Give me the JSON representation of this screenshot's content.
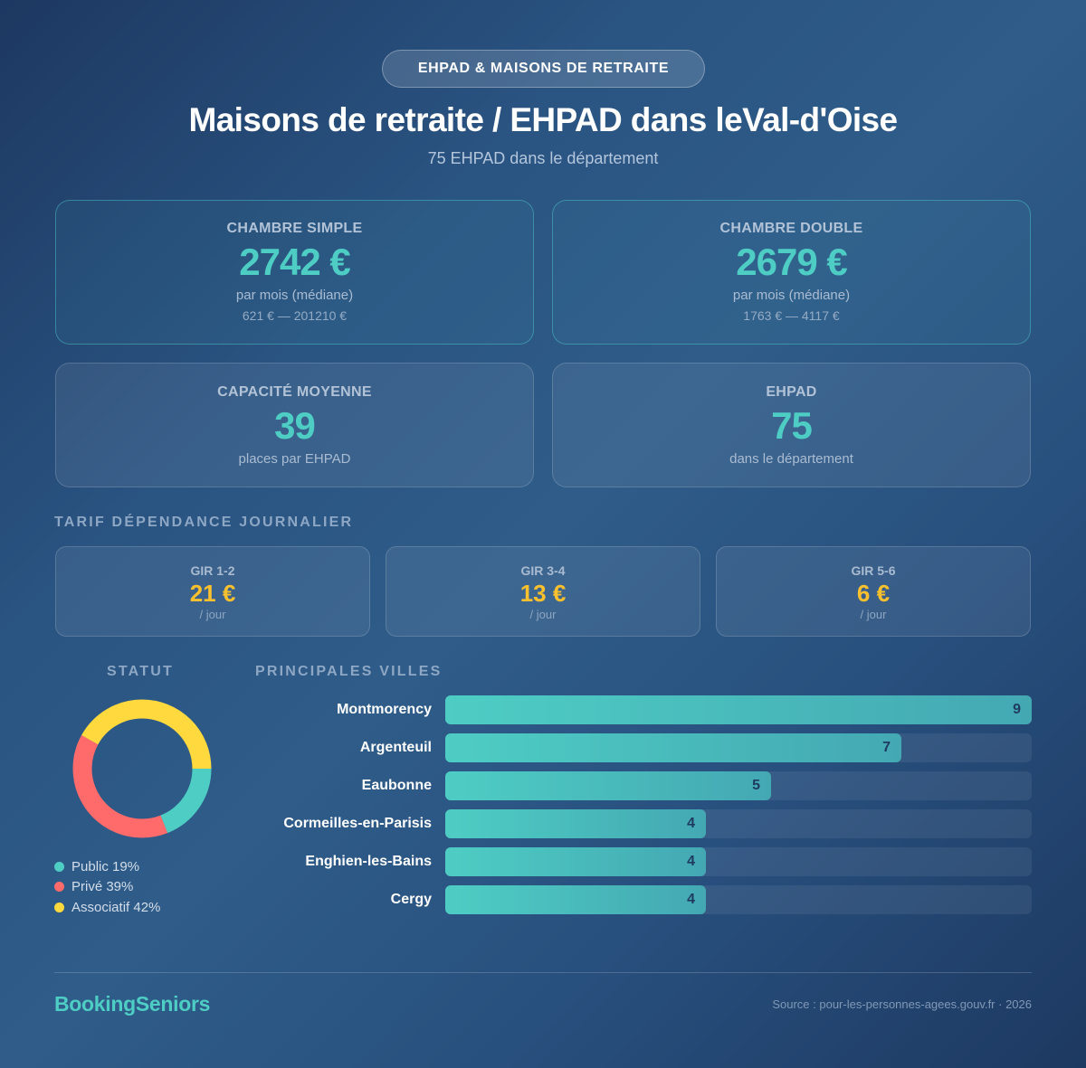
{
  "header": {
    "badge": "EHPAD & MAISONS DE RETRAITE",
    "title": "Maisons de retraite / EHPAD dans leVal-d'Oise",
    "subtitle": "75 EHPAD dans le département"
  },
  "cards": {
    "simple": {
      "label": "CHAMBRE SIMPLE",
      "value": "2742 €",
      "sub": "par mois (médiane)",
      "range": "621 € — 201210 €"
    },
    "double": {
      "label": "CHAMBRE DOUBLE",
      "value": "2679 €",
      "sub": "par mois (médiane)",
      "range": "1763 € — 4117 €"
    },
    "capacity": {
      "label": "CAPACITÉ MOYENNE",
      "value": "39",
      "sub": "places par EHPAD"
    },
    "count": {
      "label": "EHPAD",
      "value": "75",
      "sub": "dans le département"
    }
  },
  "dependance": {
    "title": "TARIF DÉPENDANCE JOURNALIER",
    "items": [
      {
        "label": "GIR 1-2",
        "value": "21 €",
        "unit": "/ jour"
      },
      {
        "label": "GIR 3-4",
        "value": "13 €",
        "unit": "/ jour"
      },
      {
        "label": "GIR 5-6",
        "value": "6 €",
        "unit": "/ jour"
      }
    ]
  },
  "statut": {
    "title": "STATUT",
    "legend": [
      {
        "label": "Public 19%",
        "color": "#4ecdc4"
      },
      {
        "label": "Privé 39%",
        "color": "#ff6b6b"
      },
      {
        "label": "Associatif 42%",
        "color": "#ffd93d"
      }
    ]
  },
  "villes": {
    "title": "PRINCIPALES VILLES",
    "rows": [
      {
        "name": "Montmorency",
        "value": "9"
      },
      {
        "name": "Argenteuil",
        "value": "7"
      },
      {
        "name": "Eaubonne",
        "value": "5"
      },
      {
        "name": "Cormeilles-en-Parisis",
        "value": "4"
      },
      {
        "name": "Enghien-les-Bains",
        "value": "4"
      },
      {
        "name": "Cergy",
        "value": "4"
      }
    ]
  },
  "footer": {
    "brand": "BookingSeniors",
    "source": "Source : pour-les-personnes-agees.gouv.fr · 2026"
  },
  "colors": {
    "accent": "#4ecdc4",
    "gold": "#fbc02d",
    "public": "#4ecdc4",
    "prive": "#ff6b6b",
    "associatif": "#ffd93d"
  },
  "chart_data": [
    {
      "type": "pie",
      "title": "STATUT",
      "categories": [
        "Public",
        "Privé",
        "Associatif"
      ],
      "values": [
        19,
        39,
        42
      ],
      "unit": "%",
      "colors": [
        "#4ecdc4",
        "#ff6b6b",
        "#ffd93d"
      ],
      "donut": true,
      "legend_position": "bottom"
    },
    {
      "type": "bar",
      "orientation": "horizontal",
      "title": "PRINCIPALES VILLES",
      "categories": [
        "Montmorency",
        "Argenteuil",
        "Eaubonne",
        "Cormeilles-en-Parisis",
        "Enghien-les-Bains",
        "Cergy"
      ],
      "values": [
        9,
        7,
        5,
        4,
        4,
        4
      ],
      "xlabel": "",
      "ylabel": "",
      "xlim": [
        0,
        9
      ],
      "grid": false
    },
    {
      "type": "table",
      "title": "TARIF DÉPENDANCE JOURNALIER",
      "categories": [
        "GIR 1-2",
        "GIR 3-4",
        "GIR 5-6"
      ],
      "values": [
        21,
        13,
        6
      ],
      "unit": "€ / jour"
    }
  ]
}
